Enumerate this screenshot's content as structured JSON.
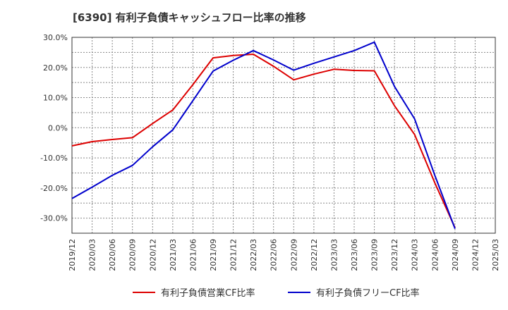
{
  "chart_data": {
    "type": "line",
    "title": "[6390]  有利子負債キャッシュフロー比率の推移",
    "xlabel": "",
    "ylabel": "",
    "ylim": [
      -35,
      30
    ],
    "y_ticks": [
      "30.0%",
      "20.0%",
      "10.0%",
      "0.0%",
      "-10.0%",
      "-20.0%",
      "-30.0%"
    ],
    "y_tick_values": [
      30,
      20,
      10,
      0,
      -10,
      -20,
      -30
    ],
    "x": [
      "2019/12",
      "2020/03",
      "2020/06",
      "2020/09",
      "2020/12",
      "2021/03",
      "2021/06",
      "2021/09",
      "2021/12",
      "2022/03",
      "2022/06",
      "2022/09",
      "2022/12",
      "2023/03",
      "2023/06",
      "2023/09",
      "2023/12",
      "2024/03",
      "2024/06",
      "2024/09",
      "2024/12",
      "2025/03"
    ],
    "grid": true,
    "legend_position": "bottom",
    "series": [
      {
        "name": "有利子負債営業CF比率",
        "color": "#dd0000",
        "values": [
          -6.0,
          -4.6,
          -3.9,
          -3.3,
          1.4,
          5.9,
          14.3,
          23.2,
          24.0,
          24.4,
          20.4,
          15.9,
          17.8,
          19.4,
          19.0,
          18.9,
          7.3,
          -2.3,
          -18.3,
          -33.2,
          null,
          null
        ]
      },
      {
        "name": "有利子負債フリーCF比率",
        "color": "#0000cc",
        "values": [
          -23.5,
          -19.7,
          -15.8,
          -12.5,
          -6.3,
          -0.7,
          9.0,
          18.8,
          22.4,
          25.6,
          22.5,
          19.1,
          21.4,
          23.5,
          25.6,
          28.4,
          13.7,
          2.9,
          -15.8,
          -33.5,
          null,
          null
        ]
      }
    ]
  }
}
